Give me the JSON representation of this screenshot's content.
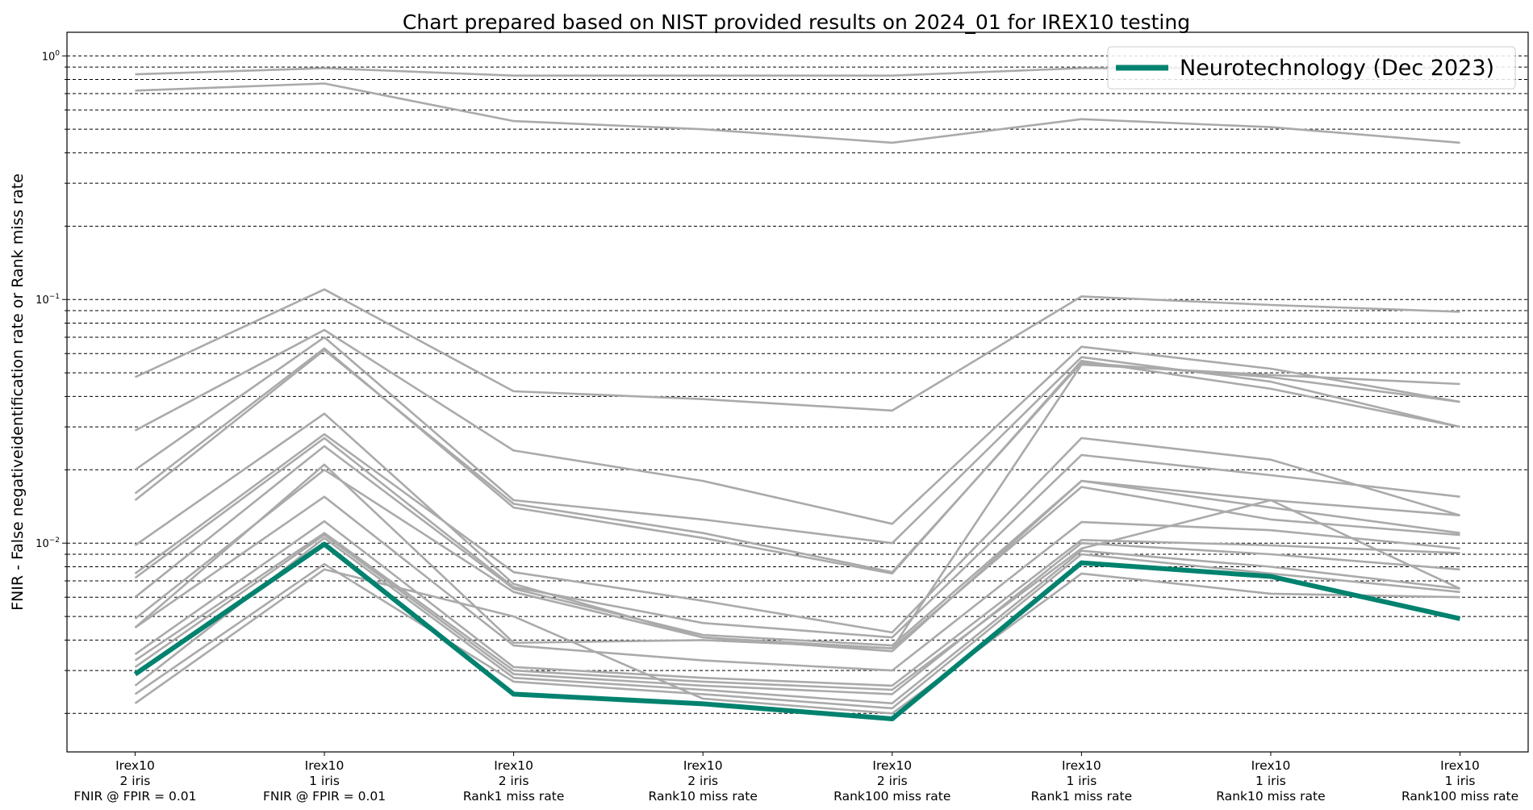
{
  "chart_data": {
    "type": "line",
    "title": "Chart prepared based on NIST provided results on 2024_01 for IREX10 testing",
    "ylabel": "FNIR - False negativeidentification rate or Rank miss rate",
    "xlabel": "",
    "yscale": "log",
    "ylim": [
      0.00139,
      1.25
    ],
    "grid": "horizontal dashed at minor and major log ticks",
    "legend_position": "top-right",
    "y_tick_labels": [
      {
        "value": 1,
        "base": "10",
        "exp": "0"
      },
      {
        "value": 0.1,
        "base": "10",
        "exp": "−1"
      },
      {
        "value": 0.01,
        "base": "10",
        "exp": "−2"
      }
    ],
    "categories": [
      [
        "Irex10",
        "2 iris",
        "FNIR @ FPIR = 0.01"
      ],
      [
        "Irex10",
        "1 iris",
        "FNIR @ FPIR = 0.01"
      ],
      [
        "Irex10",
        "2 iris",
        "Rank1 miss rate"
      ],
      [
        "Irex10",
        "2 iris",
        "Rank10 miss rate"
      ],
      [
        "Irex10",
        "2 iris",
        "Rank100 miss rate"
      ],
      [
        "Irex10",
        "1 iris",
        "Rank1 miss rate"
      ],
      [
        "Irex10",
        "1 iris",
        "Rank10 miss rate"
      ],
      [
        "Irex10",
        "1 iris",
        "Rank100 miss rate"
      ]
    ],
    "highlight": {
      "name": "Neurotechnology (Dec 2023)",
      "color": "#00826f",
      "values": [
        0.0029,
        0.0099,
        0.0024,
        0.00219,
        0.0019,
        0.0083,
        0.0073,
        0.0049
      ]
    },
    "other_series_color": "#aaaaaa",
    "other_series": [
      [
        0.84,
        0.89,
        0.83,
        0.83,
        0.83,
        0.89,
        0.89,
        0.89
      ],
      [
        0.72,
        0.77,
        0.54,
        0.5,
        0.44,
        0.55,
        0.51,
        0.44
      ],
      [
        0.048,
        0.11,
        0.042,
        0.039,
        0.035,
        0.103,
        0.095,
        0.089
      ],
      [
        0.029,
        0.075,
        0.024,
        0.018,
        0.012,
        0.064,
        0.052,
        0.038
      ],
      [
        0.02,
        0.07,
        0.015,
        0.0125,
        0.01,
        0.058,
        0.046,
        0.03
      ],
      [
        0.016,
        0.063,
        0.014,
        0.0105,
        0.0075,
        0.056,
        0.043,
        0.03
      ],
      [
        0.015,
        0.062,
        0.0145,
        0.011,
        0.0076,
        0.055,
        0.048,
        0.038
      ],
      [
        0.0098,
        0.034,
        0.0068,
        0.0041,
        0.0037,
        0.054,
        0.049,
        0.045
      ],
      [
        0.0075,
        0.028,
        0.0076,
        0.0058,
        0.0043,
        0.027,
        0.022,
        0.013
      ],
      [
        0.0072,
        0.027,
        0.0066,
        0.0047,
        0.0041,
        0.023,
        0.019,
        0.0155
      ],
      [
        0.006,
        0.025,
        0.0065,
        0.0042,
        0.0038,
        0.018,
        0.015,
        0.013
      ],
      [
        0.0049,
        0.02,
        0.0063,
        0.0041,
        0.0036,
        0.018,
        0.014,
        0.011
      ],
      [
        0.0045,
        0.021,
        0.0039,
        0.004,
        0.0037,
        0.017,
        0.0125,
        0.0108
      ],
      [
        0.0045,
        0.0155,
        0.0038,
        0.0033,
        0.003,
        0.0122,
        0.0113,
        0.0095
      ],
      [
        0.0035,
        0.0123,
        0.0031,
        0.0028,
        0.0026,
        0.0103,
        0.0098,
        0.0091
      ],
      [
        0.0031,
        0.0108,
        0.0029,
        0.0026,
        0.0024,
        0.01,
        0.009,
        0.0078
      ],
      [
        0.0026,
        0.0105,
        0.0028,
        0.0025,
        0.0022,
        0.0093,
        0.008,
        0.0065
      ],
      [
        0.0024,
        0.0082,
        0.0027,
        0.0024,
        0.0021,
        0.009,
        0.0075,
        0.0063
      ],
      [
        0.0022,
        0.0078,
        0.005,
        0.0023,
        0.002,
        0.0075,
        0.0062,
        0.006
      ],
      [
        0.0033,
        0.011,
        0.003,
        0.0027,
        0.0025,
        0.0095,
        0.015,
        0.0065
      ]
    ]
  }
}
